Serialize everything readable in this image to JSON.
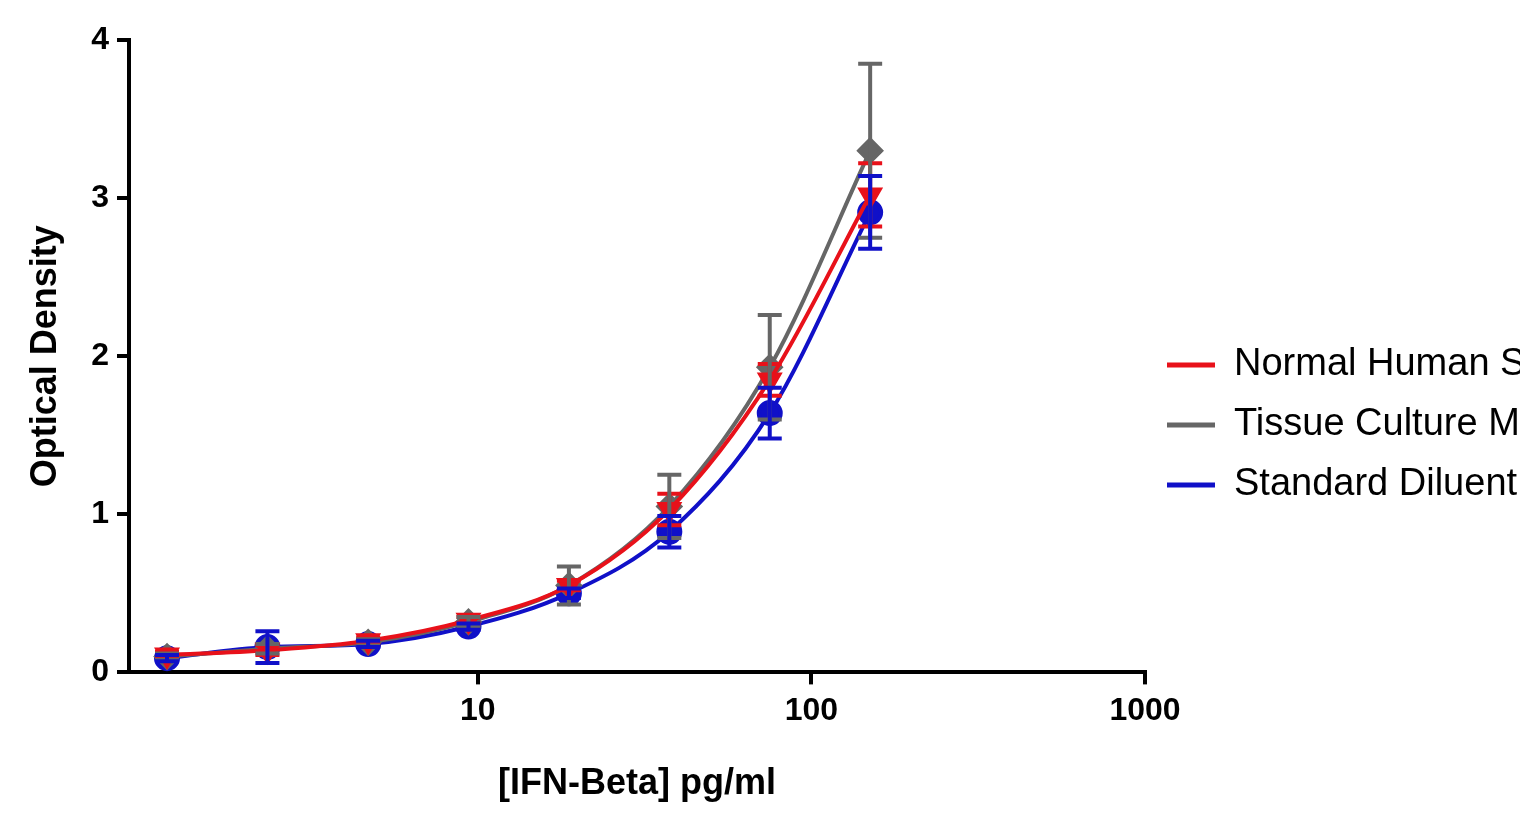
{
  "chart_data": {
    "type": "line",
    "x_label": "[IFN-Beta] pg/ml",
    "y_label": "Optical Density",
    "log": "x",
    "grid": false,
    "legend": "right",
    "x": [
      1.17,
      2.34,
      4.69,
      9.375,
      18.75,
      37.5,
      75,
      150
    ],
    "xlim": [
      0.9,
      1000
    ],
    "xticks": [
      10,
      100,
      1000
    ],
    "ylim": [
      0,
      4
    ],
    "yticks": [
      0,
      1,
      2,
      3,
      4
    ],
    "series": [
      {
        "name": "Normal Human Serum",
        "color": "#e8111a",
        "marker": "triangle-down",
        "values": [
          0.11,
          0.14,
          0.2,
          0.33,
          0.55,
          1.03,
          1.85,
          3.02
        ],
        "errors": [
          0.02,
          0.03,
          0.02,
          0.02,
          0.03,
          0.1,
          0.1,
          0.2
        ]
      },
      {
        "name": "Tissue Culture Media",
        "color": "#666666",
        "marker": "diamond",
        "values": [
          0.1,
          0.15,
          0.19,
          0.32,
          0.55,
          1.05,
          1.93,
          3.3
        ],
        "errors": [
          0.02,
          0.03,
          0.02,
          0.03,
          0.12,
          0.2,
          0.33,
          0.55
        ]
      },
      {
        "name": "Standard Diluent",
        "color": "#1010c8",
        "marker": "circle",
        "values": [
          0.09,
          0.16,
          0.18,
          0.29,
          0.5,
          0.89,
          1.64,
          2.91
        ],
        "errors": [
          0.02,
          0.1,
          0.02,
          0.02,
          0.03,
          0.1,
          0.16,
          0.23
        ]
      }
    ]
  }
}
